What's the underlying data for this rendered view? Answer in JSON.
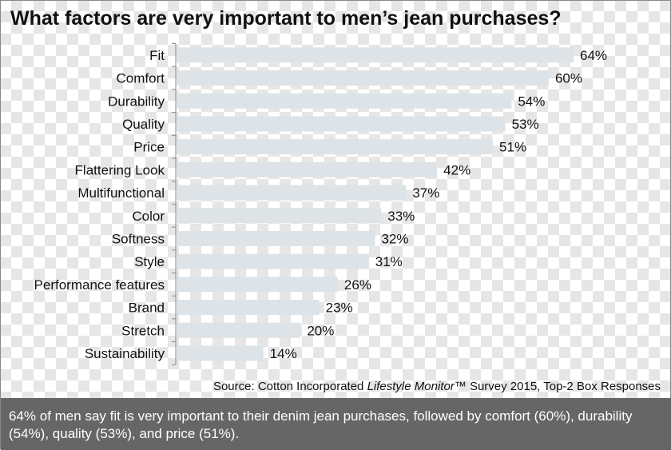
{
  "title": "What factors are very important to men’s jean purchases?",
  "source": {
    "prefix": "Source: Cotton Incorporated ",
    "italic": "Lifestyle Monitor",
    "suffix": "™ Survey 2015, Top-2 Box Responses"
  },
  "caption": "64% of men say fit is very important to their denim jean purchases, followed by comfort (60%), durability (54%), quality (53%), and price (51%).",
  "colors": {
    "bar": "#dde3e6",
    "caption_bg": "#666666"
  },
  "chart_data": {
    "type": "bar",
    "orientation": "horizontal",
    "title": "What factors are very important to men’s jean purchases?",
    "categories": [
      "Fit",
      "Comfort",
      "Durability",
      "Quality",
      "Price",
      "Flattering Look",
      "Multifunctional",
      "Color",
      "Softness",
      "Style",
      "Performance features",
      "Brand",
      "Stretch",
      "Sustainability"
    ],
    "values": [
      64,
      60,
      54,
      53,
      51,
      42,
      37,
      33,
      32,
      31,
      26,
      23,
      20,
      14
    ],
    "labels": [
      "64%",
      "60%",
      "54%",
      "53%",
      "51%",
      "42%",
      "37%",
      "33%",
      "32%",
      "31%",
      "26%",
      "23%",
      "20%",
      "14%"
    ],
    "unit": "%",
    "xlim": [
      0,
      64
    ],
    "grid": false,
    "legend": "none"
  }
}
